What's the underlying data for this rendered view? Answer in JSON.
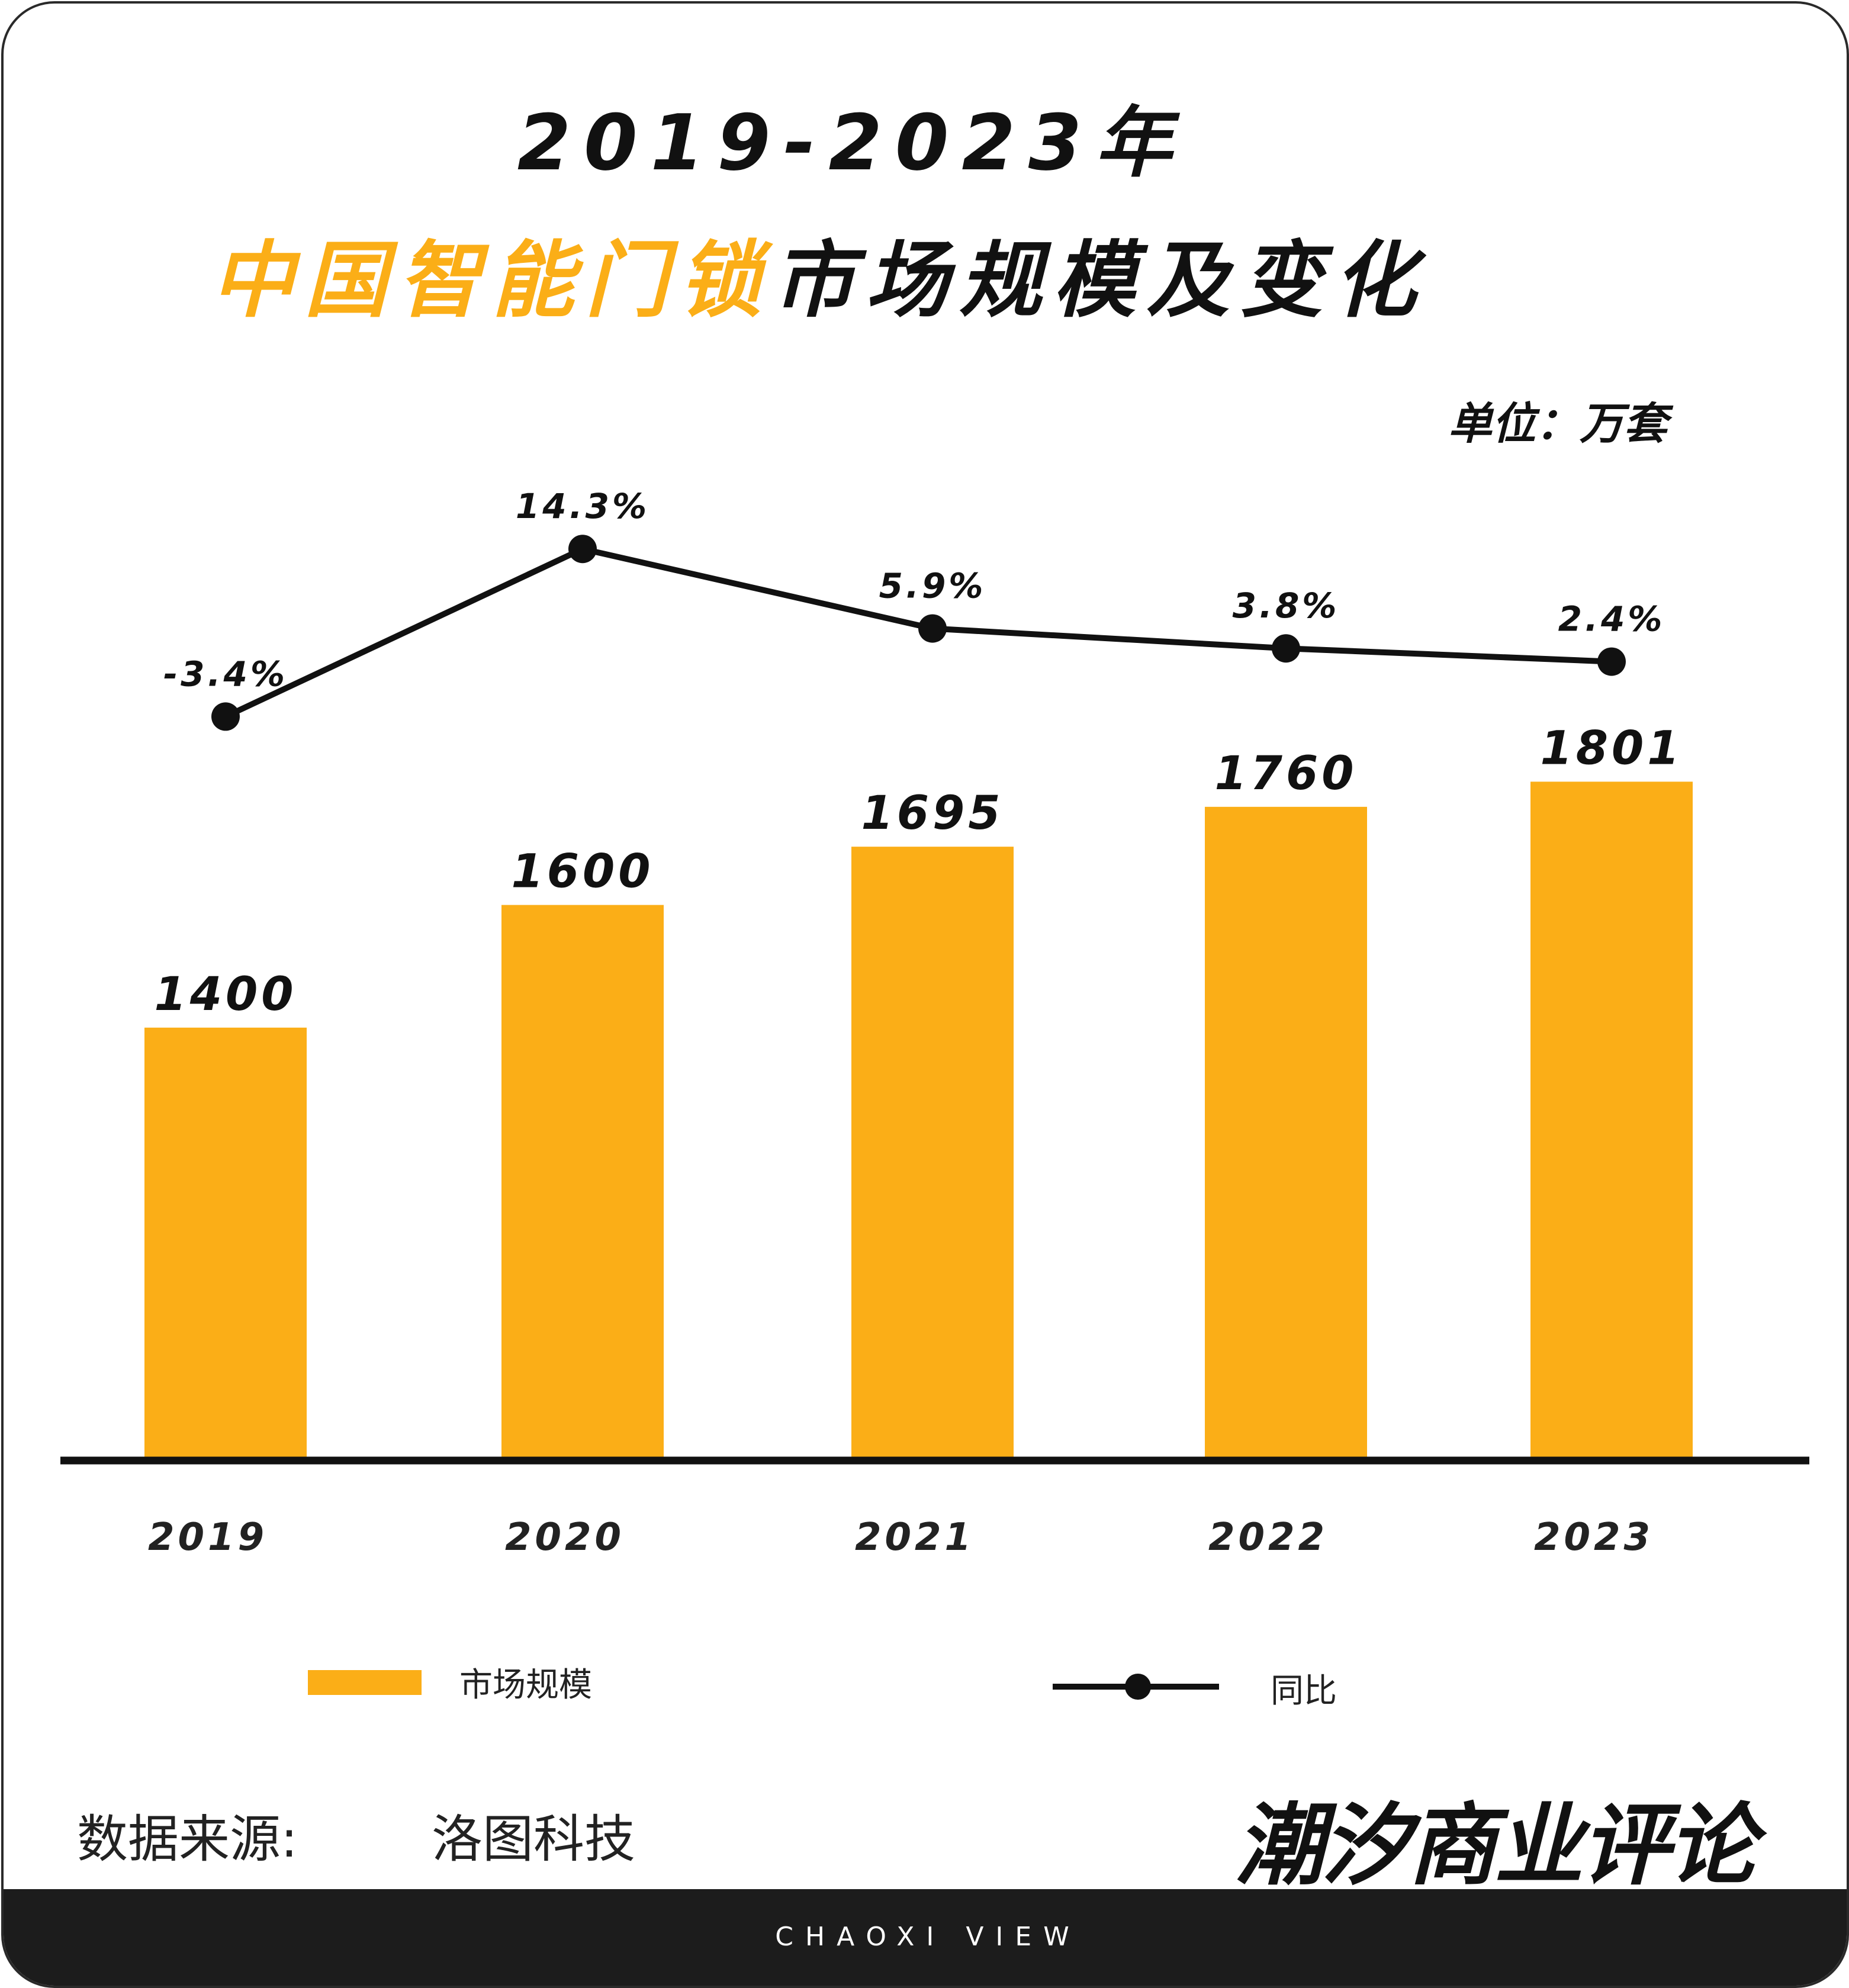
{
  "title": {
    "line1": "2019-2023年",
    "line2_highlight": "中国智能门锁",
    "line2_rest": "市场规模及变化"
  },
  "unit": "单位：万套",
  "colors": {
    "bar": "#FBAE17",
    "line": "#111111",
    "footer": "#1c1c1c"
  },
  "chart_data": {
    "type": "bar",
    "categories": [
      "2019",
      "2020",
      "2021",
      "2022",
      "2023"
    ],
    "series": [
      {
        "name": "市场规模",
        "type": "bar",
        "values": [
          1400,
          1600,
          1695,
          1760,
          1801
        ],
        "labels": [
          "1400",
          "1600",
          "1695",
          "1760",
          "1801"
        ]
      },
      {
        "name": "同比",
        "type": "line",
        "values": [
          -3.4,
          14.3,
          5.9,
          3.8,
          2.4
        ],
        "labels": [
          "-3.4%",
          "14.3%",
          "5.9%",
          "3.8%",
          "2.4%"
        ]
      }
    ],
    "ylim": [
      700,
      2000
    ],
    "xlabel": "",
    "ylabel": "",
    "legend": "bottom"
  },
  "legend": {
    "bar": "市场规模",
    "line": "同比"
  },
  "source": {
    "label": "数据来源:",
    "value": "洛图科技"
  },
  "logo": "潮汐商业评论",
  "footer": "CHAOXI VIEW"
}
